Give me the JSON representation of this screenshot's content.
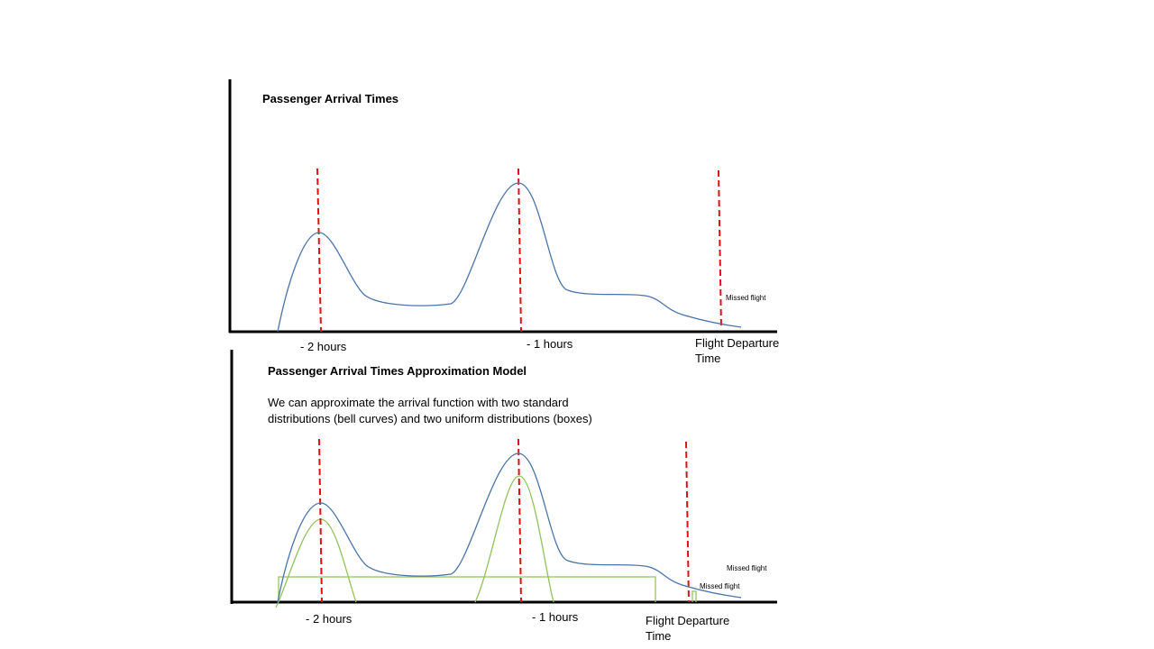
{
  "top_chart": {
    "title": "Passenger Arrival Times",
    "tick_labels": [
      "- 2 hours",
      "- 1 hours"
    ],
    "departure_label": "Flight Departure Time",
    "missed_label": "Missed flight"
  },
  "bottom_chart": {
    "title": "Passenger Arrival Times Approximation Model",
    "description": "We can approximate the arrival function with two standard distributions (bell curves) and two uniform distributions (boxes)",
    "tick_labels": [
      "- 2 hours",
      "- 1 hours"
    ],
    "departure_label": "Flight Departure Time",
    "missed_label_upper": "Missed flight",
    "missed_label_lower": "Missed flight"
  },
  "colors": {
    "axis": "#000000",
    "arrival_curve": "#4a74a8",
    "marker_line": "#e01010",
    "model_components": "#92c35a"
  }
}
